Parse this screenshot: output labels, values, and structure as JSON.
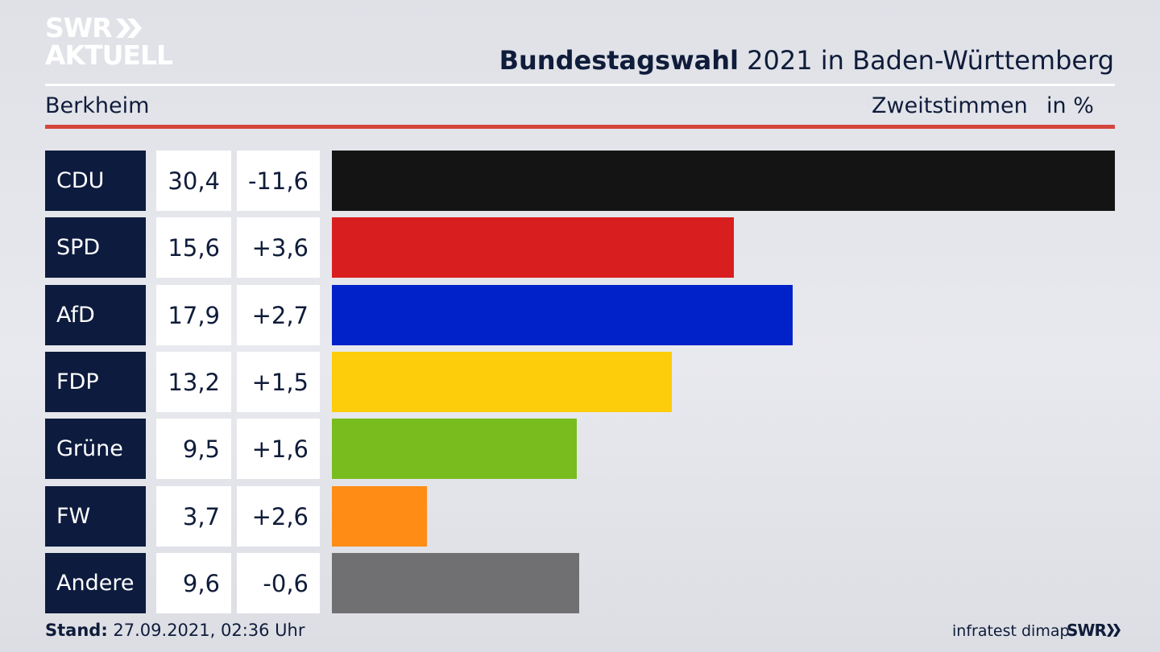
{
  "header": {
    "logo_line1": "SWR",
    "logo_line2": "AKTUELL",
    "title_bold": "Bundestagswahl",
    "title_rest": " 2021 in Baden-Württemberg",
    "region": "Berkheim",
    "vote_type": "Zweitstimmen",
    "unit": "in %"
  },
  "footer": {
    "stand_label": "Stand:",
    "stand_value": " 27.09.2021, 02:36 Uhr",
    "source": "infratest dimap",
    "logo": "SWR"
  },
  "colors": {
    "accent_red": "#d4463c",
    "label_bg": "#0d1b3e"
  },
  "chart_data": {
    "type": "bar",
    "orientation": "horizontal",
    "categories": [
      "CDU",
      "SPD",
      "AfD",
      "FDP",
      "Grüne",
      "FW",
      "Andere"
    ],
    "series": [
      {
        "values": [
          30.4,
          15.6,
          17.9,
          13.2,
          9.5,
          3.7,
          9.6
        ]
      }
    ],
    "value_labels": [
      "30,4",
      "15,6",
      "17,9",
      "13,2",
      "9,5",
      "3,7",
      "9,6"
    ],
    "change_labels": [
      "-11,6",
      "+3,6",
      "+2,7",
      "+1,5",
      "+1,6",
      "+2,6",
      "-0,6"
    ],
    "changes": [
      -11.6,
      3.6,
      2.7,
      1.5,
      1.6,
      2.6,
      -0.6
    ],
    "bar_colors": [
      "#141414",
      "#d81e1e",
      "#0022c8",
      "#fdcc0a",
      "#78bd1d",
      "#ff8c14",
      "#707072"
    ],
    "xlim": [
      0,
      30.4
    ],
    "grid": false
  }
}
